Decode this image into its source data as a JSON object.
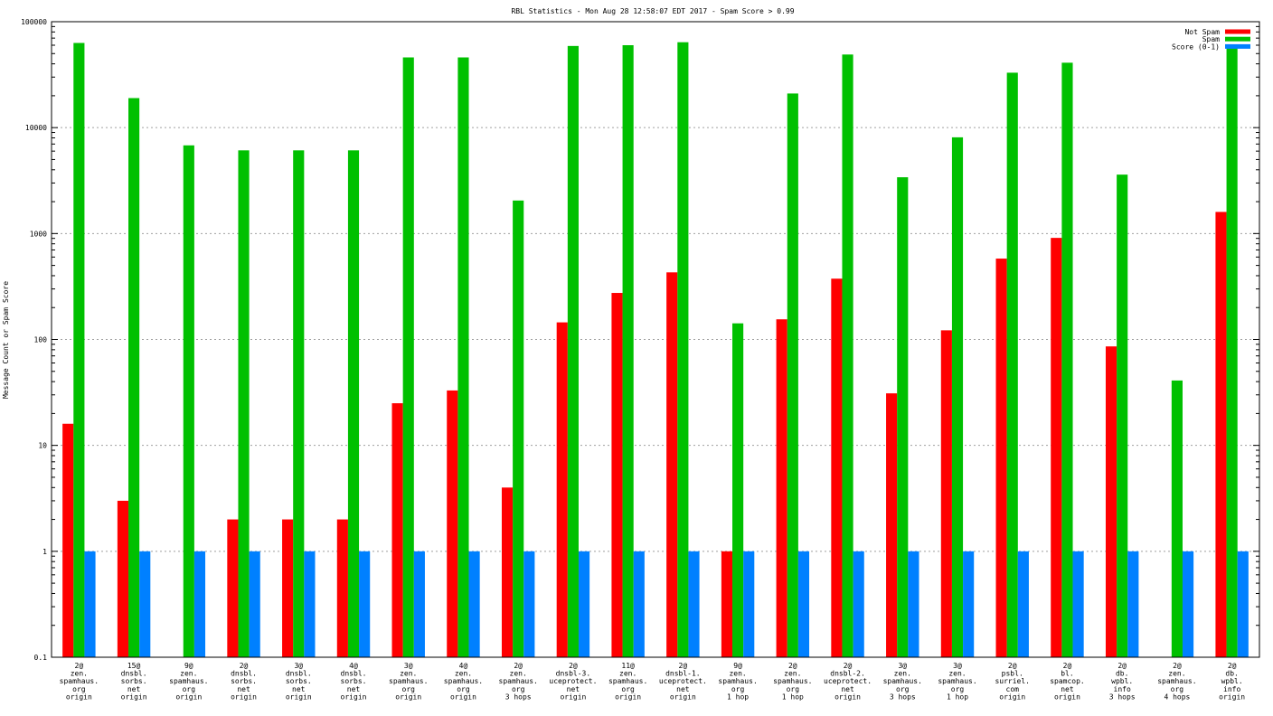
{
  "chart_data": {
    "type": "bar",
    "title": "RBL Statistics - Mon Aug 28 12:58:07 EDT 2017 - Spam Score > 0.99",
    "ylabel": "Message Count or Spam Score",
    "xlabel": "",
    "yscale": "log",
    "ylim": [
      0.1,
      100000
    ],
    "yticks": [
      "0.1",
      "1",
      "10",
      "100",
      "1000",
      "10000",
      "100000"
    ],
    "grid": "dotted",
    "legend_position": "top-right",
    "categories": [
      [
        "2@",
        "zen.",
        "spamhaus.",
        "org",
        "origin"
      ],
      [
        "15@",
        "dnsbl.",
        "sorbs.",
        "net",
        "origin"
      ],
      [
        "9@",
        "zen.",
        "spamhaus.",
        "org",
        "origin"
      ],
      [
        "2@",
        "dnsbl.",
        "sorbs.",
        "net",
        "origin"
      ],
      [
        "3@",
        "dnsbl.",
        "sorbs.",
        "net",
        "origin"
      ],
      [
        "4@",
        "dnsbl.",
        "sorbs.",
        "net",
        "origin"
      ],
      [
        "3@",
        "zen.",
        "spamhaus.",
        "org",
        "origin"
      ],
      [
        "4@",
        "zen.",
        "spamhaus.",
        "org",
        "origin"
      ],
      [
        "2@",
        "zen.",
        "spamhaus.",
        "org",
        "3 hops"
      ],
      [
        "2@",
        "dnsbl-3.",
        "uceprotect.",
        "net",
        "origin"
      ],
      [
        "11@",
        "zen.",
        "spamhaus.",
        "org",
        "origin"
      ],
      [
        "2@",
        "dnsbl-1.",
        "uceprotect.",
        "net",
        "origin"
      ],
      [
        "9@",
        "zen.",
        "spamhaus.",
        "org",
        "1 hop"
      ],
      [
        "2@",
        "zen.",
        "spamhaus.",
        "org",
        "1 hop"
      ],
      [
        "2@",
        "dnsbl-2.",
        "uceprotect.",
        "net",
        "origin"
      ],
      [
        "3@",
        "zen.",
        "spamhaus.",
        "org",
        "3 hops"
      ],
      [
        "3@",
        "zen.",
        "spamhaus.",
        "org",
        "1 hop"
      ],
      [
        "2@",
        "psbl.",
        "surriel.",
        "com",
        "origin"
      ],
      [
        "2@",
        "bl.",
        "spamcop.",
        "net",
        "origin"
      ],
      [
        "2@",
        "db.",
        "wpbl.",
        "info",
        "3 hops"
      ],
      [
        "2@",
        "zen.",
        "spamhaus.",
        "org",
        "4 hops"
      ],
      [
        "2@",
        "db.",
        "wpbl.",
        "info",
        "origin"
      ]
    ],
    "series": [
      {
        "name": "Not Spam",
        "color": "#ff0000",
        "values": [
          16,
          3,
          null,
          2,
          2,
          2,
          25,
          33,
          4,
          145,
          275,
          430,
          1,
          155,
          375,
          31,
          122,
          580,
          910,
          86,
          null,
          1600
        ]
      },
      {
        "name": "Spam",
        "color": "#00c000",
        "values": [
          63000,
          19000,
          6800,
          6100,
          6100,
          6100,
          46000,
          46000,
          2050,
          59000,
          60000,
          64000,
          142,
          21000,
          49000,
          3400,
          8100,
          33000,
          41000,
          3600,
          41,
          58000
        ]
      },
      {
        "name": "Score (0-1)",
        "color": "#0080ff",
        "values": [
          1,
          1,
          1,
          1,
          1,
          1,
          1,
          1,
          1,
          1,
          1,
          1,
          1,
          1,
          1,
          1,
          1,
          1,
          1,
          1,
          1,
          1
        ]
      }
    ]
  }
}
